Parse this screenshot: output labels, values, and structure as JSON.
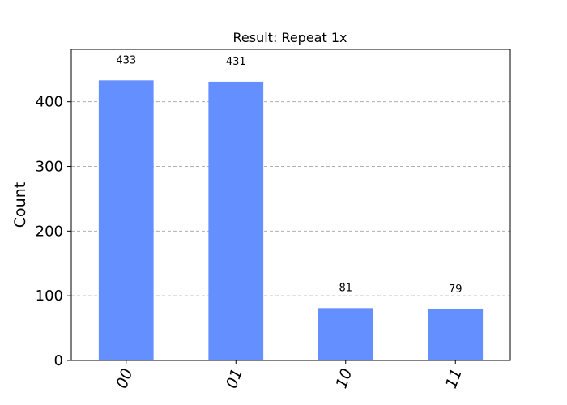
{
  "chart_data": {
    "type": "bar",
    "title": "Result: Repeat 1x",
    "xlabel": "",
    "ylabel": "Count",
    "categories": [
      "00",
      "01",
      "10",
      "11"
    ],
    "values": [
      433,
      431,
      81,
      79
    ],
    "data_labels": [
      "433",
      "431",
      "81",
      "79"
    ],
    "yticks": [
      0,
      100,
      200,
      300,
      400
    ],
    "ylim": [
      0,
      481
    ],
    "grid": "horizontal-dashed",
    "legend": "none",
    "bar_color": "#648fff",
    "grid_color": "#b0b0b0"
  }
}
